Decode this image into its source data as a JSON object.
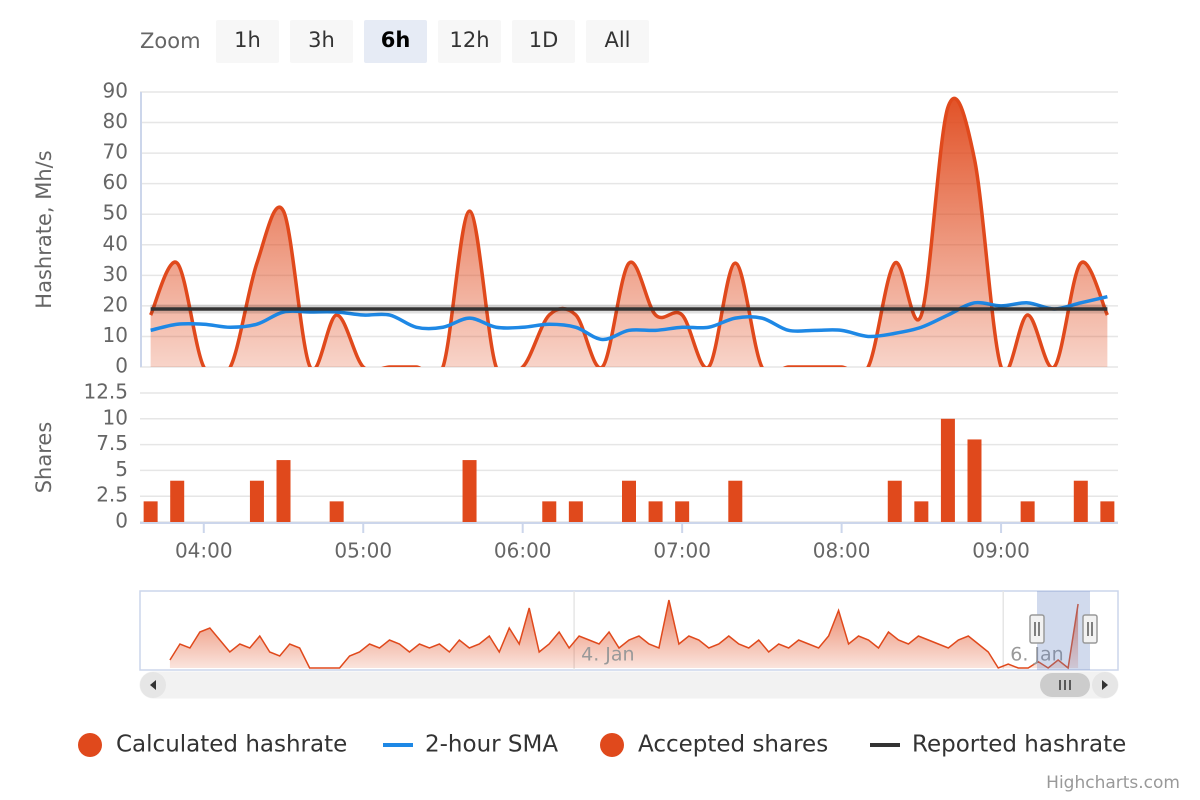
{
  "range_selector": {
    "label": "Zoom",
    "buttons": [
      "1h",
      "3h",
      "6h",
      "12h",
      "1D",
      "All"
    ],
    "selected": 2
  },
  "credits": "Highcharts.com",
  "chart_data": [
    {
      "type": "area",
      "y_axis_title": "Hashrate, Mh/s",
      "x": [
        "03:40",
        "03:50",
        "04:00",
        "04:10",
        "04:20",
        "04:30",
        "04:40",
        "04:50",
        "05:00",
        "05:10",
        "05:20",
        "05:30",
        "05:40",
        "05:50",
        "06:00",
        "06:10",
        "06:20",
        "06:30",
        "06:40",
        "06:50",
        "07:00",
        "07:10",
        "07:20",
        "07:30",
        "07:40",
        "07:50",
        "08:00",
        "08:10",
        "08:20",
        "08:30",
        "08:40",
        "08:50",
        "09:00",
        "09:10",
        "09:20",
        "09:30",
        "09:40"
      ],
      "xlim": [
        "03:36",
        "09:44"
      ],
      "ylim": [
        0,
        90
      ],
      "yticks": [
        0,
        10,
        20,
        30,
        40,
        50,
        60,
        70,
        80,
        90
      ],
      "grid": true,
      "series": [
        {
          "name": "Calculated hashrate",
          "color": "#e0491c",
          "kind": "area",
          "values": [
            17,
            34,
            0,
            0,
            34,
            51,
            0,
            17,
            0,
            0,
            0,
            0,
            51,
            0,
            0,
            17,
            17,
            0,
            34,
            17,
            17,
            0,
            34,
            0,
            0,
            0,
            0,
            0,
            34,
            17,
            85,
            68,
            0,
            17,
            0,
            34,
            17
          ]
        },
        {
          "name": "2-hour SMA",
          "color": "#1e88e5",
          "kind": "line",
          "values": [
            12,
            14,
            14,
            13,
            14,
            18,
            18,
            18,
            17,
            17,
            13,
            13,
            16,
            13,
            13,
            14,
            13,
            9,
            12,
            12,
            13,
            13,
            16,
            16,
            12,
            12,
            12,
            10,
            11,
            13,
            17,
            21,
            20,
            21,
            19,
            21,
            23
          ]
        },
        {
          "name": "Reported hashrate",
          "color": "#333333",
          "kind": "line",
          "values": [
            19,
            19,
            19,
            19,
            19,
            19,
            19,
            19,
            19,
            19,
            19,
            19,
            19,
            19,
            19,
            19,
            19,
            19,
            19,
            19,
            19,
            19,
            19,
            19,
            19,
            19,
            19,
            19,
            19,
            19,
            19,
            19,
            19,
            19,
            19,
            19,
            19
          ]
        }
      ]
    },
    {
      "type": "bar",
      "y_axis_title": "Shares",
      "x": [
        "03:40",
        "03:50",
        "04:20",
        "04:30",
        "04:50",
        "05:40",
        "06:10",
        "06:20",
        "06:40",
        "06:50",
        "07:00",
        "07:20",
        "08:20",
        "08:30",
        "08:40",
        "08:50",
        "09:10",
        "09:30",
        "09:40"
      ],
      "xlim": [
        "03:36",
        "09:44"
      ],
      "xticks": [
        "04:00",
        "05:00",
        "06:00",
        "07:00",
        "08:00",
        "09:00"
      ],
      "ylim": [
        0,
        12.5
      ],
      "yticks": [
        0,
        2.5,
        5,
        7.5,
        10,
        12.5
      ],
      "grid": true,
      "series": [
        {
          "name": "Accepted shares",
          "color": "#e0491c",
          "values": [
            2,
            4,
            4,
            6,
            2,
            6,
            2,
            2,
            4,
            2,
            2,
            4,
            4,
            2,
            10,
            8,
            2,
            4,
            2
          ]
        }
      ]
    },
    {
      "type": "area",
      "color": "#e0491c",
      "xlim": [
        -3,
        95
      ],
      "ylim": [
        0,
        90
      ],
      "xticks": [
        {
          "value": 40.5,
          "label": "4. Jan"
        },
        {
          "value": 83.5,
          "label": "6. Jan"
        }
      ],
      "values": [
        10,
        30,
        25,
        45,
        50,
        35,
        20,
        30,
        25,
        40,
        20,
        15,
        30,
        25,
        0,
        0,
        0,
        0,
        15,
        20,
        30,
        25,
        35,
        30,
        20,
        30,
        25,
        30,
        20,
        35,
        25,
        30,
        40,
        20,
        50,
        30,
        75,
        20,
        30,
        45,
        25,
        40,
        35,
        30,
        45,
        25,
        35,
        40,
        30,
        25,
        85,
        30,
        40,
        35,
        25,
        30,
        40,
        30,
        25,
        35,
        20,
        30,
        25,
        35,
        30,
        25,
        40,
        72,
        30,
        40,
        35,
        25,
        45,
        35,
        30,
        40,
        35,
        30,
        25,
        35,
        40,
        30,
        20,
        0,
        5,
        0,
        0,
        8,
        0,
        10,
        0,
        80
      ]
    }
  ]
}
